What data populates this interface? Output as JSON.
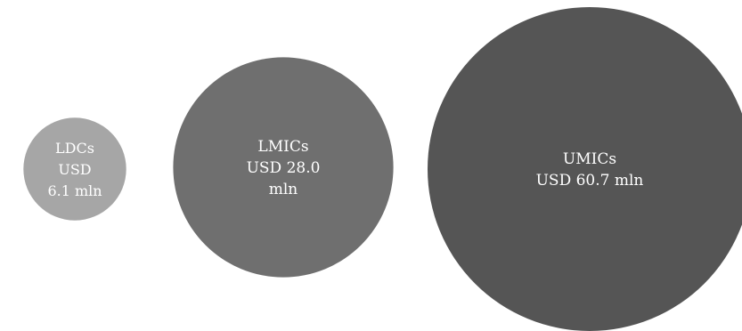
{
  "chart_data": {
    "type": "bubble",
    "title": "",
    "series": [
      {
        "category": "LDCs",
        "value": 6.1,
        "unit": "USD mln",
        "label_lines": [
          "LDCs",
          "USD",
          "6.1 mln"
        ],
        "color": "#a6a6a6"
      },
      {
        "category": "LMICs",
        "value": 28.0,
        "unit": "USD mln",
        "label_lines": [
          "LMICs",
          "USD 28.0",
          "mln"
        ],
        "color": "#6f6f6f"
      },
      {
        "category": "UMICs",
        "value": 60.7,
        "unit": "USD mln",
        "label_lines": [
          "UMICs",
          "USD 60.7 mln"
        ],
        "color": "#555555"
      }
    ]
  }
}
